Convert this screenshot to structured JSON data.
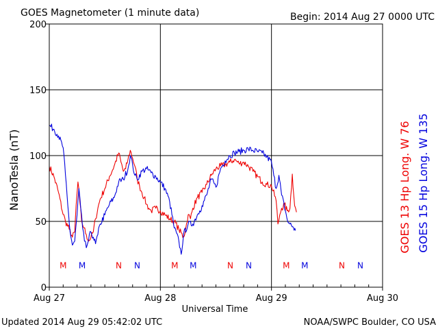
{
  "header": {
    "title": "GOES Magnetometer (1 minute data)",
    "begin": "Begin:  2014 Aug 27 0000 UTC"
  },
  "footer": {
    "updated": "Updated 2014 Aug 29 05:42:02 UTC",
    "source": "NOAA/SWPC Boulder, CO USA"
  },
  "colors": {
    "goes13": "#ee0000",
    "goes15": "#0000dd",
    "grid": "#000000"
  },
  "chart_data": {
    "type": "line",
    "title": "GOES Magnetometer (1 minute data)",
    "xlabel": "Universal Time",
    "ylabel": "NanoTesla (nT)",
    "xlim": [
      0,
      72
    ],
    "ylim": [
      0,
      200
    ],
    "grid": true,
    "legend_position": "right (vertical)",
    "x_ticks": [
      {
        "x": 0,
        "label": "Aug 27"
      },
      {
        "x": 24,
        "label": "Aug 28"
      },
      {
        "x": 48,
        "label": "Aug 29"
      },
      {
        "x": 72,
        "label": "Aug 30"
      }
    ],
    "y_ticks": [
      {
        "y": 0,
        "label": "0"
      },
      {
        "y": 50,
        "label": "50"
      },
      {
        "y": 100,
        "label": "100"
      },
      {
        "y": 150,
        "label": "150"
      },
      {
        "y": 200,
        "label": "200"
      }
    ],
    "series": [
      {
        "name": "GOES 13 Hp  Long. W 76",
        "color": "#ee0000",
        "points": [
          [
            0,
            92
          ],
          [
            1,
            84
          ],
          [
            2,
            72
          ],
          [
            2.8,
            58
          ],
          [
            3.5,
            50
          ],
          [
            4.3,
            44
          ],
          [
            5,
            38
          ],
          [
            5.5,
            42
          ],
          [
            5.8,
            62
          ],
          [
            6.2,
            80
          ],
          [
            6.6,
            65
          ],
          [
            7,
            50
          ],
          [
            7.5,
            45
          ],
          [
            8,
            40
          ],
          [
            8.5,
            35
          ],
          [
            9,
            38
          ],
          [
            9.5,
            42
          ],
          [
            10,
            52
          ],
          [
            10.5,
            60
          ],
          [
            11,
            67
          ],
          [
            12,
            75
          ],
          [
            13,
            84
          ],
          [
            14,
            92
          ],
          [
            15,
            102
          ],
          [
            15.5,
            95
          ],
          [
            16,
            88
          ],
          [
            16.5,
            90
          ],
          [
            17,
            97
          ],
          [
            17.5,
            104
          ],
          [
            18,
            98
          ],
          [
            18.5,
            92
          ],
          [
            19,
            82
          ],
          [
            19.5,
            77
          ],
          [
            20,
            72
          ],
          [
            20.5,
            68
          ],
          [
            21,
            63
          ],
          [
            21.5,
            60
          ],
          [
            22,
            58
          ],
          [
            23,
            60
          ],
          [
            24,
            58
          ],
          [
            25,
            55
          ],
          [
            26,
            52
          ],
          [
            27,
            50
          ],
          [
            28,
            44
          ],
          [
            29,
            38
          ],
          [
            29.5,
            45
          ],
          [
            30,
            55
          ],
          [
            30.5,
            52
          ],
          [
            31,
            60
          ],
          [
            32,
            68
          ],
          [
            33,
            72
          ],
          [
            34,
            78
          ],
          [
            35,
            85
          ],
          [
            36,
            90
          ],
          [
            37,
            92
          ],
          [
            38,
            93
          ],
          [
            39,
            95
          ],
          [
            40,
            97
          ],
          [
            41,
            94
          ],
          [
            42,
            95
          ],
          [
            43,
            92
          ],
          [
            44,
            88
          ],
          [
            45,
            84
          ],
          [
            46,
            80
          ],
          [
            47,
            78
          ],
          [
            48,
            77
          ],
          [
            49,
            66
          ],
          [
            49.4,
            48
          ],
          [
            49.8,
            55
          ],
          [
            50.2,
            60
          ],
          [
            50.8,
            63
          ],
          [
            51.4,
            58
          ],
          [
            52,
            60
          ],
          [
            52.5,
            86
          ],
          [
            53,
            62
          ],
          [
            53.4,
            57
          ]
        ]
      },
      {
        "name": "GOES 15 Hp  Long. W 135",
        "color": "#0000dd",
        "points": [
          [
            0,
            123
          ],
          [
            1,
            120
          ],
          [
            2,
            115
          ],
          [
            3,
            106
          ],
          [
            3.5,
            85
          ],
          [
            4,
            62
          ],
          [
            4.5,
            42
          ],
          [
            5,
            32
          ],
          [
            5.5,
            35
          ],
          [
            6,
            55
          ],
          [
            6.4,
            75
          ],
          [
            6.8,
            60
          ],
          [
            7.2,
            45
          ],
          [
            7.6,
            35
          ],
          [
            8,
            30
          ],
          [
            8.5,
            36
          ],
          [
            9,
            42
          ],
          [
            9.5,
            38
          ],
          [
            10,
            33
          ],
          [
            10.5,
            40
          ],
          [
            11,
            48
          ],
          [
            12,
            55
          ],
          [
            13,
            63
          ],
          [
            14,
            68
          ],
          [
            15,
            80
          ],
          [
            16,
            82
          ],
          [
            17,
            90
          ],
          [
            17.5,
            100
          ],
          [
            18,
            93
          ],
          [
            18.5,
            85
          ],
          [
            19,
            82
          ],
          [
            20,
            88
          ],
          [
            21,
            90
          ],
          [
            22,
            87
          ],
          [
            23,
            84
          ],
          [
            24,
            80
          ],
          [
            25,
            75
          ],
          [
            26,
            65
          ],
          [
            27,
            45
          ],
          [
            28,
            35
          ],
          [
            28.5,
            25
          ],
          [
            29,
            40
          ],
          [
            30,
            48
          ],
          [
            31,
            48
          ],
          [
            32,
            55
          ],
          [
            32.5,
            58
          ],
          [
            33,
            62
          ],
          [
            34,
            70
          ],
          [
            35,
            82
          ],
          [
            36,
            76
          ],
          [
            37,
            90
          ],
          [
            38,
            96
          ],
          [
            39,
            100
          ],
          [
            40,
            102
          ],
          [
            41,
            103
          ],
          [
            42,
            104
          ],
          [
            43,
            105
          ],
          [
            44,
            104
          ],
          [
            45,
            103
          ],
          [
            46,
            102
          ],
          [
            47,
            99
          ],
          [
            48,
            95
          ],
          [
            48.5,
            85
          ],
          [
            49,
            75
          ],
          [
            49.6,
            85
          ],
          [
            50.2,
            70
          ],
          [
            51,
            58
          ],
          [
            51.5,
            50
          ],
          [
            52,
            48
          ],
          [
            52.6,
            46
          ],
          [
            53.2,
            43
          ]
        ]
      }
    ],
    "markers": [
      {
        "x": 3,
        "label": "M",
        "series": "GOES 13 Hp  Long. W 76"
      },
      {
        "x": 7.1,
        "label": "M",
        "series": "GOES 15 Hp  Long. W 135"
      },
      {
        "x": 15,
        "label": "N",
        "series": "GOES 13 Hp  Long. W 76"
      },
      {
        "x": 19,
        "label": "N",
        "series": "GOES 15 Hp  Long. W 135"
      },
      {
        "x": 27.1,
        "label": "M",
        "series": "GOES 13 Hp  Long. W 76"
      },
      {
        "x": 31.1,
        "label": "M",
        "series": "GOES 15 Hp  Long. W 135"
      },
      {
        "x": 39.1,
        "label": "N",
        "series": "GOES 13 Hp  Long. W 76"
      },
      {
        "x": 43.1,
        "label": "N",
        "series": "GOES 15 Hp  Long. W 135"
      },
      {
        "x": 51.2,
        "label": "M",
        "series": "GOES 13 Hp  Long. W 76"
      },
      {
        "x": 55.2,
        "label": "M",
        "series": "GOES 15 Hp  Long. W 135"
      },
      {
        "x": 63.2,
        "label": "N",
        "series": "GOES 13 Hp  Long. W 76"
      },
      {
        "x": 67.2,
        "label": "N",
        "series": "GOES 15 Hp  Long. W 135"
      }
    ],
    "marker_level": 17
  }
}
